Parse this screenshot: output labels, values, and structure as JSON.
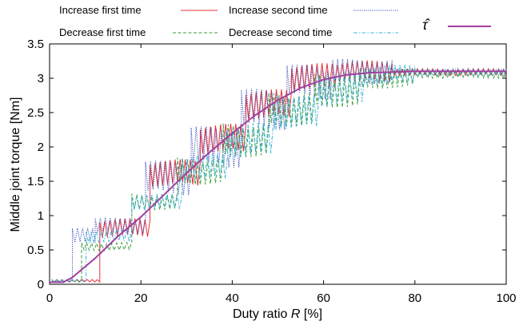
{
  "chart_data": {
    "type": "line",
    "xlabel_prefix": "Duty ratio ",
    "xlabel_var": "R",
    "xlabel_suffix": " [%]",
    "ylabel": "Middle joint torque  [Nm]",
    "xlim": [
      0,
      100
    ],
    "ylim": [
      0,
      3.5
    ],
    "x_ticks": [
      "0",
      "20",
      "40",
      "60",
      "80",
      "100"
    ],
    "y_ticks": [
      "0",
      "0.5",
      "1",
      "1.5",
      "2",
      "2.5",
      "3",
      "3.5"
    ],
    "grid": false,
    "legend_position": "top",
    "series": [
      {
        "name": "Increase first time",
        "color": "#e8303a",
        "dash": "solid",
        "style": "stepped-oscillating",
        "steps": [
          {
            "x0": 0.5,
            "x1": 11,
            "base": 0.05,
            "amp": 0.02
          },
          {
            "x0": 11,
            "x1": 22,
            "base": 0.82,
            "amp": 0.14
          },
          {
            "x0": 22,
            "x1": 33,
            "base": 1.62,
            "amp": 0.2
          },
          {
            "x0": 33,
            "x1": 43,
            "base": 2.12,
            "amp": 0.22
          },
          {
            "x0": 43,
            "x1": 53,
            "base": 2.62,
            "amp": 0.22
          },
          {
            "x0": 53,
            "x1": 63,
            "base": 3.02,
            "amp": 0.2
          },
          {
            "x0": 63,
            "x1": 75,
            "base": 3.1,
            "amp": 0.16
          },
          {
            "x0": 75,
            "x1": 100,
            "base": 3.09,
            "amp": 0.05
          }
        ]
      },
      {
        "name": "Increase second time",
        "color": "#3a4fb8",
        "dash": "dotted",
        "style": "stepped-oscillating",
        "steps": [
          {
            "x0": 0.5,
            "x1": 5,
            "base": 0.05,
            "amp": 0.02
          },
          {
            "x0": 5,
            "x1": 10,
            "base": 0.7,
            "amp": 0.12
          },
          {
            "x0": 10,
            "x1": 21,
            "base": 0.85,
            "amp": 0.12
          },
          {
            "x0": 21,
            "x1": 31,
            "base": 1.55,
            "amp": 0.25
          },
          {
            "x0": 31,
            "x1": 42,
            "base": 2.0,
            "amp": 0.3
          },
          {
            "x0": 42,
            "x1": 52,
            "base": 2.55,
            "amp": 0.3
          },
          {
            "x0": 52,
            "x1": 62,
            "base": 2.95,
            "amp": 0.25
          },
          {
            "x0": 62,
            "x1": 75,
            "base": 3.1,
            "amp": 0.18
          },
          {
            "x0": 75,
            "x1": 100,
            "base": 3.1,
            "amp": 0.04
          }
        ]
      },
      {
        "name": "Decrease first time",
        "color": "#3a9b3a",
        "dash": "dashed",
        "style": "stepped-oscillating",
        "steps": [
          {
            "x0": 0.5,
            "x1": 7,
            "base": 0.05,
            "amp": 0.02
          },
          {
            "x0": 7,
            "x1": 18,
            "base": 0.55,
            "amp": 0.06
          },
          {
            "x0": 18,
            "x1": 28,
            "base": 1.2,
            "amp": 0.12
          },
          {
            "x0": 28,
            "x1": 38,
            "base": 1.65,
            "amp": 0.2
          },
          {
            "x0": 38,
            "x1": 48,
            "base": 2.1,
            "amp": 0.25
          },
          {
            "x0": 48,
            "x1": 58,
            "base": 2.55,
            "amp": 0.25
          },
          {
            "x0": 58,
            "x1": 68,
            "base": 2.82,
            "amp": 0.25
          },
          {
            "x0": 68,
            "x1": 80,
            "base": 3.0,
            "amp": 0.15
          },
          {
            "x0": 80,
            "x1": 100,
            "base": 3.05,
            "amp": 0.05
          }
        ]
      },
      {
        "name": "Decrease second time",
        "color": "#3fb4d8",
        "dash": "dashdot",
        "style": "stepped-oscillating",
        "steps": [
          {
            "x0": 0.5,
            "x1": 8,
            "base": 0.05,
            "amp": 0.02
          },
          {
            "x0": 8,
            "x1": 18,
            "base": 0.7,
            "amp": 0.1
          },
          {
            "x0": 18,
            "x1": 29,
            "base": 1.2,
            "amp": 0.12
          },
          {
            "x0": 29,
            "x1": 39,
            "base": 1.7,
            "amp": 0.2
          },
          {
            "x0": 39,
            "x1": 49,
            "base": 2.1,
            "amp": 0.25
          },
          {
            "x0": 49,
            "x1": 59,
            "base": 2.5,
            "amp": 0.25
          },
          {
            "x0": 59,
            "x1": 69,
            "base": 2.85,
            "amp": 0.25
          },
          {
            "x0": 69,
            "x1": 80,
            "base": 3.05,
            "amp": 0.15
          },
          {
            "x0": 80,
            "x1": 100,
            "base": 3.08,
            "amp": 0.05
          }
        ]
      },
      {
        "name": "τ̂",
        "color": "#a040a0",
        "dash": "solid",
        "style": "smooth",
        "x": [
          0,
          3,
          5,
          10,
          15,
          20,
          25,
          30,
          35,
          40,
          45,
          50,
          55,
          60,
          65,
          70,
          75,
          80,
          85,
          90,
          95,
          100
        ],
        "y": [
          0.03,
          0.03,
          0.1,
          0.38,
          0.7,
          0.98,
          1.3,
          1.62,
          1.92,
          2.2,
          2.46,
          2.68,
          2.86,
          2.98,
          3.05,
          3.08,
          3.09,
          3.1,
          3.1,
          3.1,
          3.1,
          3.1
        ]
      }
    ]
  }
}
